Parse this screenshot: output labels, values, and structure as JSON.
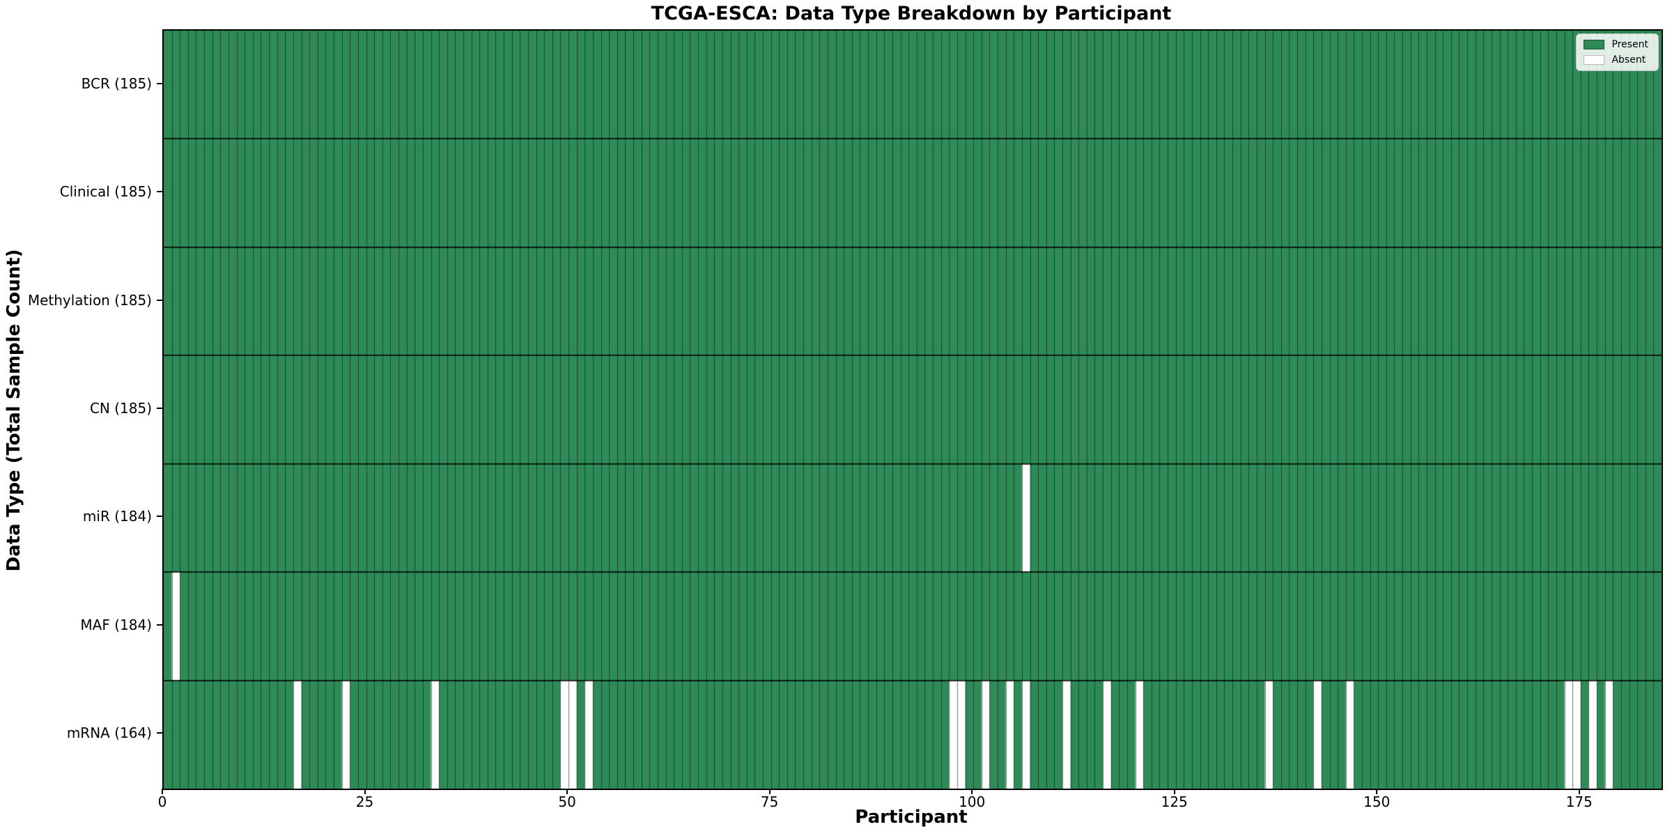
{
  "figure": {
    "title": "TCGA-ESCA: Data Type Breakdown by Participant",
    "xlabel": "Participant",
    "ylabel": "Data Type (Total Sample Count)"
  },
  "chart_data": {
    "type": "heatmap",
    "title": "TCGA-ESCA: Data Type Breakdown by Participant",
    "xlabel": "Participant",
    "ylabel": "Data Type (Total Sample Count)",
    "n_participants": 185,
    "xlim": [
      0,
      185
    ],
    "x_ticks": [
      0,
      25,
      50,
      75,
      100,
      125,
      150,
      175
    ],
    "grid": "cell-borders",
    "legend_position": "upper right",
    "rows": [
      {
        "label": "BCR (185)",
        "data_type": "BCR",
        "total": 185,
        "absent_participants": []
      },
      {
        "label": "Clinical (185)",
        "data_type": "Clinical",
        "total": 185,
        "absent_participants": []
      },
      {
        "label": "Methylation (185)",
        "data_type": "Methylation",
        "total": 185,
        "absent_participants": []
      },
      {
        "label": "CN (185)",
        "data_type": "CN",
        "total": 185,
        "absent_participants": []
      },
      {
        "label": "miR (184)",
        "data_type": "miR",
        "total": 184,
        "absent_participants": [
          106
        ]
      },
      {
        "label": "MAF (184)",
        "data_type": "MAF",
        "total": 184,
        "absent_participants": [
          1
        ]
      },
      {
        "label": "mRNA (164)",
        "data_type": "mRNA",
        "total": 164,
        "absent_participants": [
          16,
          22,
          33,
          49,
          50,
          52,
          97,
          98,
          101,
          104,
          106,
          111,
          116,
          120,
          136,
          142,
          146,
          173,
          174,
          176,
          178
        ]
      }
    ],
    "legend": [
      {
        "label": "Present",
        "color": "#2e8b57"
      },
      {
        "label": "Absent",
        "color": "#ffffff"
      }
    ],
    "colors": {
      "present": "#2e8b57",
      "absent": "#ffffff",
      "cell_edge": "#000000",
      "cell_edge_alpha": 0.5,
      "row_divider": "#000000",
      "row_divider_alpha": 0.8
    }
  }
}
